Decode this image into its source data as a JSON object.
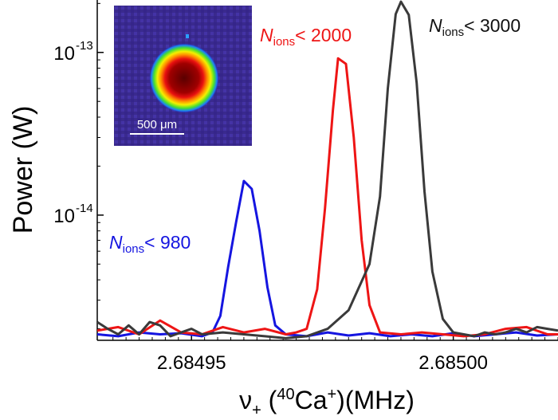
{
  "chart_data": {
    "type": "line",
    "xlabel": "ν₊ (⁴⁰Ca⁺)(MHz)",
    "xlabel_parts": {
      "nu": "ν",
      "plus": "+",
      "mass": "40",
      "element": "Ca",
      "charge": "+",
      "open_paren": " (",
      "close_unit": ")(MHz)"
    },
    "ylabel": "Power (W)",
    "x_scale": "linear",
    "y_scale": "log",
    "xlim": [
      2.684932,
      2.68502
    ],
    "ylim": [
      1.7e-15,
      2.1e-13
    ],
    "grid": false,
    "xticks": [
      {
        "value": 2.68495,
        "label": "2.68495"
      },
      {
        "value": 2.685,
        "label": "2.68500"
      }
    ],
    "yticks": [
      {
        "value": 1e-13,
        "label": "10",
        "exp": "-13"
      },
      {
        "value": 1e-14,
        "label": "10",
        "exp": "-14"
      }
    ],
    "series": [
      {
        "id": "n980",
        "color": "#1515e0",
        "points": [
          [
            2.684932,
            1.85e-15
          ],
          [
            2.684936,
            1.8e-15
          ],
          [
            2.68494,
            1.9e-15
          ],
          [
            2.684944,
            1.85e-15
          ],
          [
            2.684948,
            1.88e-15
          ],
          [
            2.684952,
            1.8e-15
          ],
          [
            2.684954,
            1.9e-15
          ],
          [
            2.6849555,
            2.4e-15
          ],
          [
            2.684957,
            4.8e-15
          ],
          [
            2.6849585,
            9e-15
          ],
          [
            2.68496,
            1.62e-14
          ],
          [
            2.6849615,
            1.45e-14
          ],
          [
            2.684963,
            8e-15
          ],
          [
            2.6849645,
            3.6e-15
          ],
          [
            2.684966,
            2.1e-15
          ],
          [
            2.684968,
            1.85e-15
          ],
          [
            2.684972,
            1.8e-15
          ],
          [
            2.684976,
            1.9e-15
          ],
          [
            2.68498,
            1.82e-15
          ],
          [
            2.684984,
            1.88e-15
          ],
          [
            2.684988,
            1.8e-15
          ],
          [
            2.684992,
            1.85e-15
          ],
          [
            2.684996,
            1.8e-15
          ],
          [
            2.685,
            1.88e-15
          ],
          [
            2.685004,
            1.8e-15
          ],
          [
            2.685008,
            1.85e-15
          ],
          [
            2.685012,
            1.9e-15
          ],
          [
            2.685016,
            1.82e-15
          ],
          [
            2.68502,
            1.85e-15
          ]
        ]
      },
      {
        "id": "n2000",
        "color": "#ee1515",
        "points": [
          [
            2.684932,
            1.95e-15
          ],
          [
            2.684936,
            2.05e-15
          ],
          [
            2.68494,
            1.85e-15
          ],
          [
            2.684944,
            2.25e-15
          ],
          [
            2.684948,
            1.9e-15
          ],
          [
            2.684952,
            1.85e-15
          ],
          [
            2.684956,
            2.05e-15
          ],
          [
            2.68496,
            1.9e-15
          ],
          [
            2.684964,
            2e-15
          ],
          [
            2.684968,
            1.85e-15
          ],
          [
            2.68497,
            1.9e-15
          ],
          [
            2.684972,
            2e-15
          ],
          [
            2.684974,
            3.5e-15
          ],
          [
            2.6849755,
            1.1e-14
          ],
          [
            2.684977,
            4.4e-14
          ],
          [
            2.684978,
            9.2e-14
          ],
          [
            2.6849795,
            8.5e-14
          ],
          [
            2.684981,
            3e-14
          ],
          [
            2.6849825,
            7e-15
          ],
          [
            2.684984,
            2.8e-15
          ],
          [
            2.684986,
            1.9e-15
          ],
          [
            2.68499,
            1.85e-15
          ],
          [
            2.684994,
            1.9e-15
          ],
          [
            2.684998,
            1.85e-15
          ],
          [
            2.685002,
            1.8e-15
          ],
          [
            2.685006,
            1.85e-15
          ],
          [
            2.68501,
            2e-15
          ],
          [
            2.685014,
            2.05e-15
          ],
          [
            2.685018,
            1.85e-15
          ],
          [
            2.68502,
            1.85e-15
          ]
        ]
      },
      {
        "id": "n3000",
        "color": "#3a3a3a",
        "points": [
          [
            2.684932,
            2.2e-15
          ],
          [
            2.684934,
            2e-15
          ],
          [
            2.684936,
            1.85e-15
          ],
          [
            2.684938,
            2.1e-15
          ],
          [
            2.68494,
            1.85e-15
          ],
          [
            2.684942,
            2.2e-15
          ],
          [
            2.684944,
            2.1e-15
          ],
          [
            2.684946,
            1.8e-15
          ],
          [
            2.684948,
            1.9e-15
          ],
          [
            2.68495,
            2e-15
          ],
          [
            2.684952,
            1.85e-15
          ],
          [
            2.684956,
            1.9e-15
          ],
          [
            2.68496,
            1.85e-15
          ],
          [
            2.684964,
            1.8e-15
          ],
          [
            2.684968,
            1.75e-15
          ],
          [
            2.684972,
            1.8e-15
          ],
          [
            2.684976,
            2e-15
          ],
          [
            2.68498,
            2.6e-15
          ],
          [
            2.684984,
            5e-15
          ],
          [
            2.684986,
            1.3e-14
          ],
          [
            2.6849875,
            6e-14
          ],
          [
            2.684989,
            1.72e-13
          ],
          [
            2.68499,
            2.05e-13
          ],
          [
            2.6849915,
            1.7e-13
          ],
          [
            2.684993,
            6.5e-14
          ],
          [
            2.6849945,
            1.4e-14
          ],
          [
            2.684996,
            4.5e-15
          ],
          [
            2.684998,
            2.3e-15
          ],
          [
            2.685,
            1.9e-15
          ],
          [
            2.685004,
            1.8e-15
          ],
          [
            2.685006,
            1.9e-15
          ],
          [
            2.685008,
            1.85e-15
          ],
          [
            2.68501,
            1.9e-15
          ],
          [
            2.685012,
            2e-15
          ],
          [
            2.685014,
            1.9e-15
          ],
          [
            2.685016,
            2.05e-15
          ],
          [
            2.685018,
            2e-15
          ],
          [
            2.68502,
            1.95e-15
          ]
        ]
      }
    ],
    "annotations": [
      {
        "id": "n980",
        "italic": "N",
        "sub": "ions",
        "text": "< 980",
        "color": "#1515e0"
      },
      {
        "id": "n2000",
        "italic": "N",
        "sub": "ions",
        "text": "< 2000",
        "color": "#ee1515"
      },
      {
        "id": "n3000",
        "italic": "N",
        "sub": "ions",
        "text": "< 3000",
        "color": "#111111"
      }
    ],
    "inset": {
      "scalebar_label": "500 μm"
    }
  }
}
